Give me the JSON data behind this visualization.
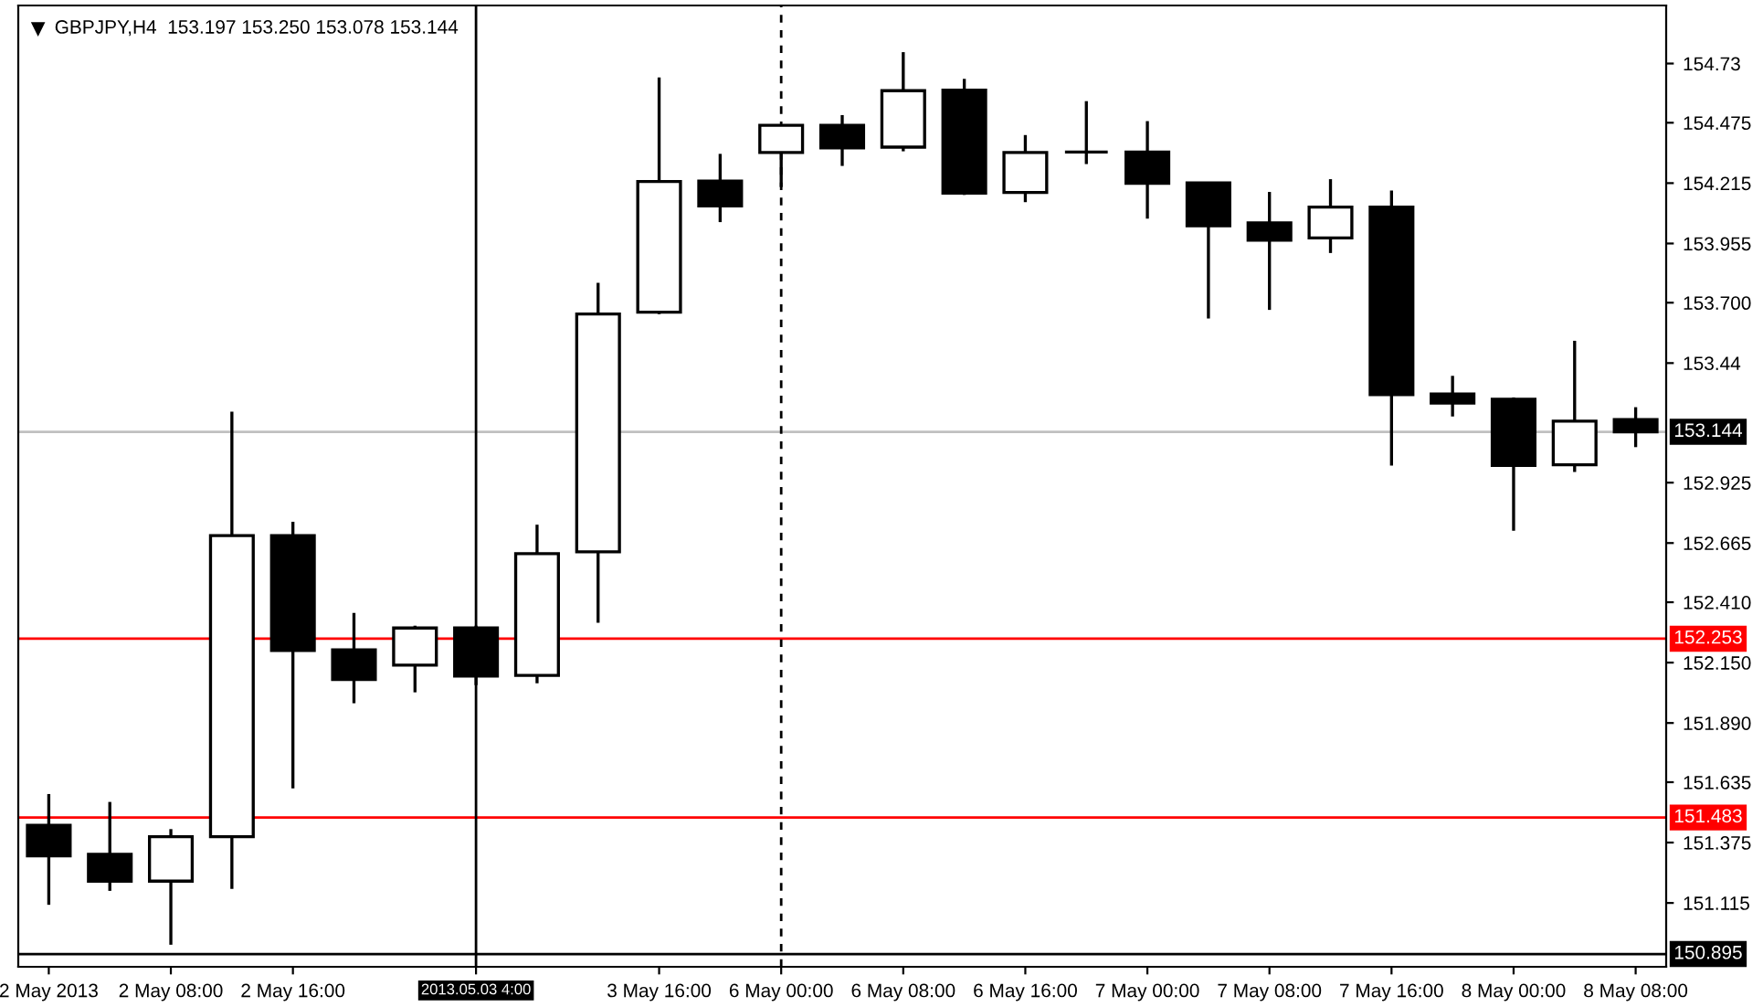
{
  "chart_data": {
    "type": "candlestick",
    "title": "GBPJPY,H4  153.197 153.250 153.078 153.144",
    "categories": [
      "2 May 2013",
      null,
      "2 May 08:00",
      null,
      "2 May 16:00",
      null,
      null,
      "2013.05.03 4:00",
      null,
      null,
      "3 May 16:00",
      null,
      "6 May 00:00",
      null,
      "6 May 08:00",
      null,
      "6 May 16:00",
      null,
      "7 May 00:00",
      null,
      "7 May 08:00",
      null,
      "7 May 16:00",
      null,
      "8 May 00:00",
      null,
      "8 May 08:00"
    ],
    "ohlc": [
      [
        151.449,
        151.584,
        151.107,
        151.318
      ],
      [
        151.324,
        151.55,
        151.167,
        151.209
      ],
      [
        151.209,
        151.433,
        150.935,
        151.4
      ],
      [
        151.4,
        153.231,
        151.175,
        152.697
      ],
      [
        152.697,
        152.757,
        151.608,
        152.202
      ],
      [
        152.205,
        152.364,
        151.975,
        152.077
      ],
      [
        152.139,
        152.309,
        152.022,
        152.299
      ],
      [
        152.299,
        152.309,
        152.053,
        152.092
      ],
      [
        152.095,
        152.744,
        152.061,
        152.619
      ],
      [
        152.627,
        153.786,
        152.322,
        153.651
      ],
      [
        153.659,
        154.67,
        153.651,
        154.222
      ],
      [
        154.224,
        154.341,
        154.047,
        154.117
      ],
      [
        154.347,
        154.464,
        154.198,
        154.464
      ],
      [
        154.464,
        154.508,
        154.289,
        154.367
      ],
      [
        154.37,
        154.779,
        154.352,
        154.613
      ],
      [
        154.615,
        154.664,
        154.164,
        154.172
      ],
      [
        154.175,
        154.422,
        154.133,
        154.347
      ],
      [
        154.349,
        154.568,
        154.297,
        154.349
      ],
      [
        154.349,
        154.482,
        154.062,
        154.214
      ],
      [
        154.216,
        154.216,
        153.632,
        154.031
      ],
      [
        154.044,
        154.177,
        153.669,
        153.969
      ],
      [
        153.979,
        154.232,
        153.914,
        154.112
      ],
      [
        154.112,
        154.183,
        152.999,
        153.304
      ],
      [
        153.307,
        153.385,
        153.21,
        153.268
      ],
      [
        153.284,
        153.292,
        152.718,
        152.999
      ],
      [
        153.002,
        153.536,
        152.971,
        153.19
      ],
      [
        153.197,
        153.25,
        153.078,
        153.144
      ]
    ],
    "colors": [
      "#000000",
      "#000000",
      "#ffffff",
      "#ffffff",
      "#000000",
      "#000000",
      "#ffffff",
      "#000000",
      "#ffffff",
      "#ffffff",
      "#ffffff",
      "#000000",
      "#ffffff",
      "#000000",
      "#ffffff",
      "#000000",
      "#ffffff",
      "#000000",
      "#000000",
      "#000000",
      "#000000",
      "#ffffff",
      "#000000",
      "#000000",
      "#000000",
      "#ffffff",
      "#000000"
    ],
    "ylim": [
      150.84,
      154.98
    ],
    "yticks": [
      154.73,
      154.475,
      154.215,
      153.955,
      {
        "value": 153.7,
        "label": "153.700"
      },
      153.44,
      152.925,
      152.665,
      {
        "value": 152.41,
        "label": "152.410"
      },
      {
        "value": 152.15,
        "label": "152.150"
      },
      {
        "value": 151.89,
        "label": "151.890"
      },
      151.635,
      151.375,
      151.115
    ],
    "ref_lines": [
      {
        "axis": "y",
        "value": 152.253,
        "label": "152.253",
        "color": "#ff0000"
      },
      {
        "axis": "y",
        "value": 151.483,
        "label": "151.483",
        "color": "#ff0000"
      },
      {
        "axis": "y",
        "value": 153.144,
        "label": "153.144",
        "color": "#c0c0c0"
      },
      {
        "axis": "y",
        "value": 150.895,
        "label": "150.895",
        "color": "#000000"
      },
      {
        "axis": "x",
        "value": "2013.05.03 4:00",
        "color": "#000000"
      },
      {
        "axis": "x",
        "value": "6 May 00:00",
        "color": "#000000",
        "line_style": "dashed"
      }
    ],
    "grid": false,
    "legend": false
  }
}
